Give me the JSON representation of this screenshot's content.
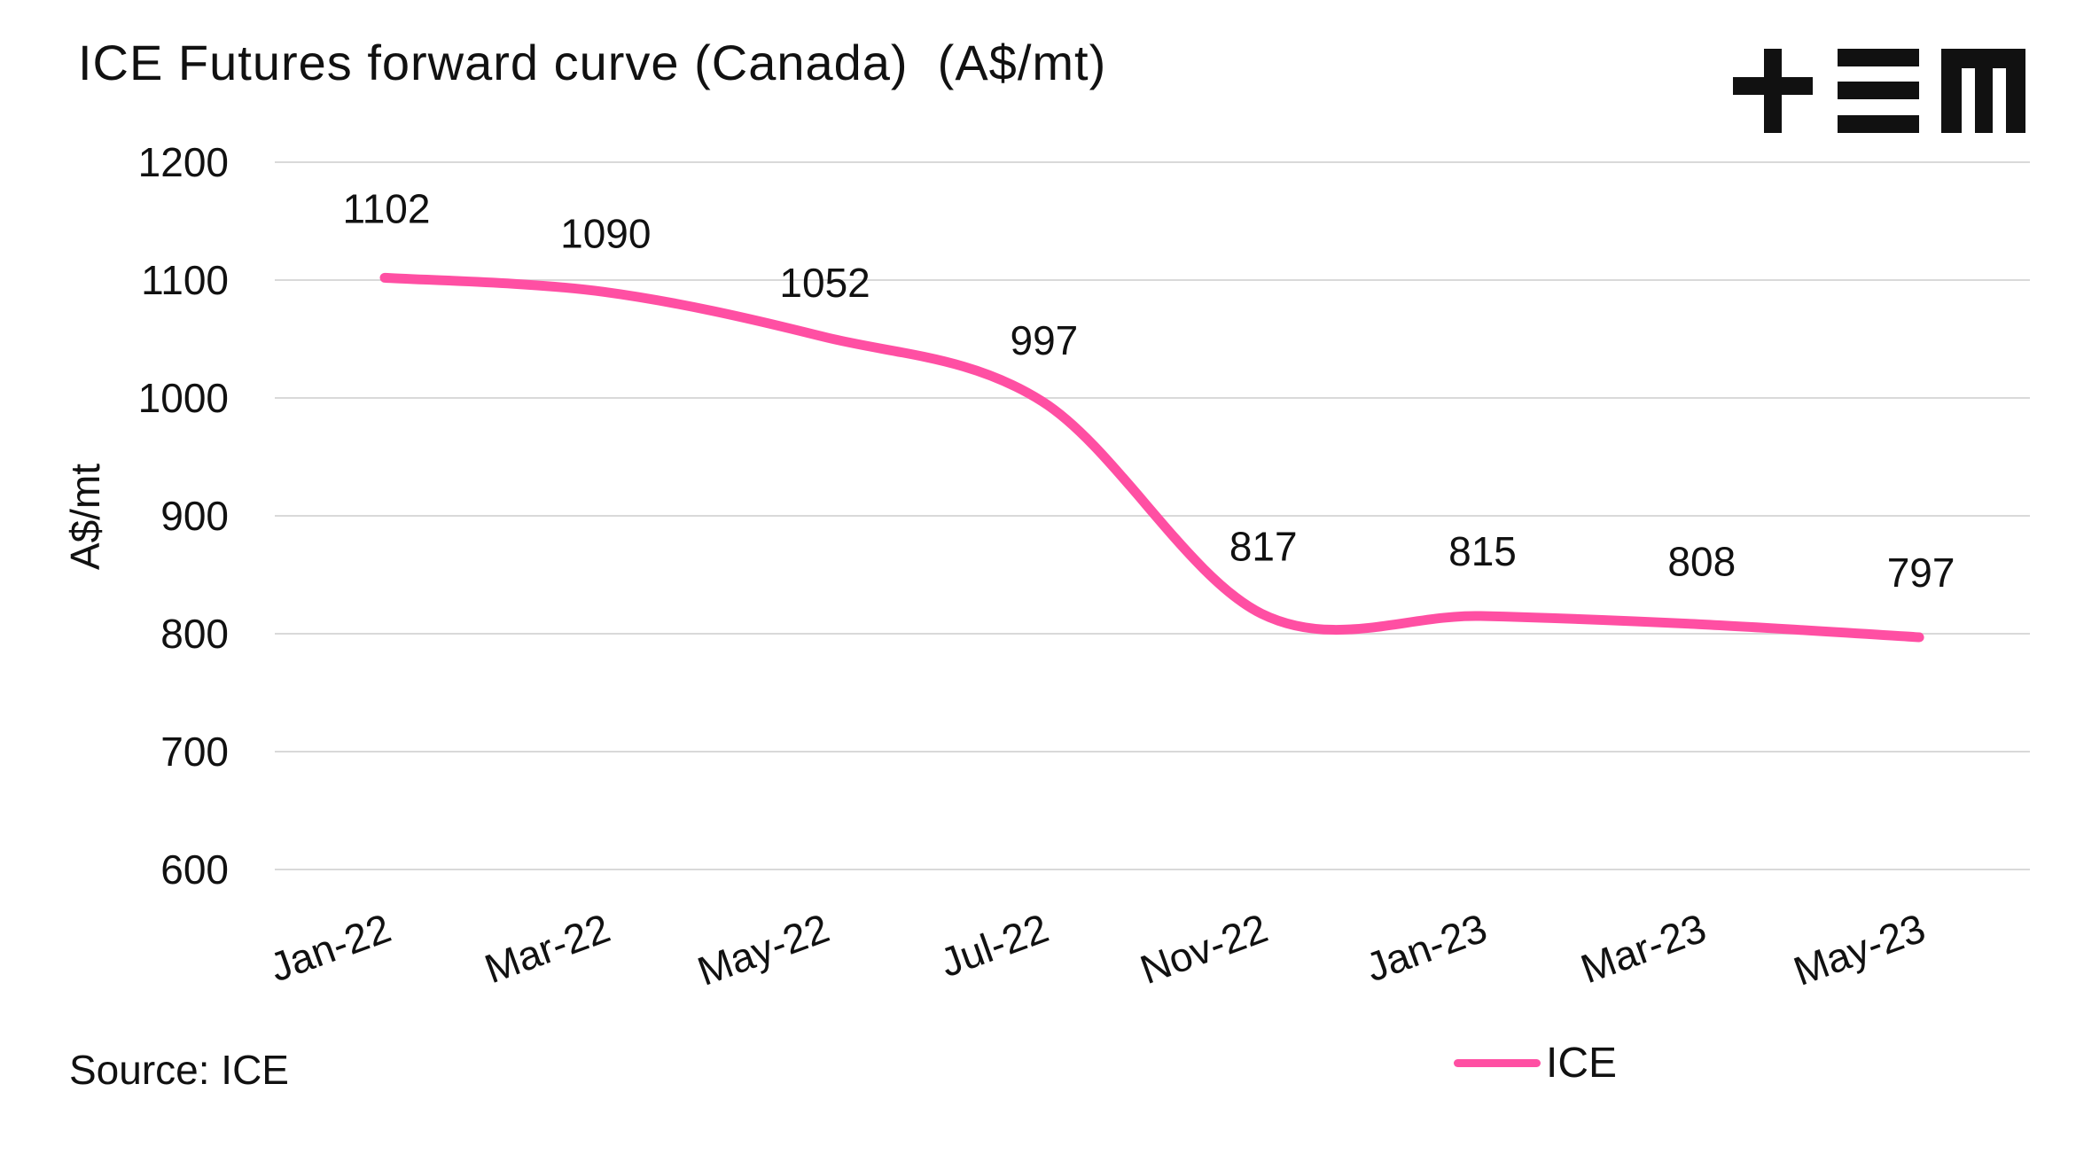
{
  "title": "ICE Futures forward curve (Canada)  (A$/mt)",
  "brand_logo": "+EM",
  "source": "Source: ICE",
  "colors": {
    "series": "#ff4fa3",
    "grid": "#d9d9d9"
  },
  "chart_data": {
    "type": "line",
    "categories": [
      "Jan-22",
      "Mar-22",
      "May-22",
      "Jul-22",
      "Nov-22",
      "Jan-23",
      "Mar-23",
      "May-23"
    ],
    "series": [
      {
        "name": "ICE",
        "values": [
          1102,
          1090,
          1052,
          997,
          817,
          815,
          808,
          797
        ]
      }
    ],
    "ylabel": "A$/mt",
    "xlabel": "",
    "ylim": [
      600,
      1200
    ],
    "yticks": [
      1200,
      1100,
      1000,
      900,
      800,
      700,
      600
    ],
    "grid": true,
    "smooth": true,
    "legend": "bottom-right"
  }
}
